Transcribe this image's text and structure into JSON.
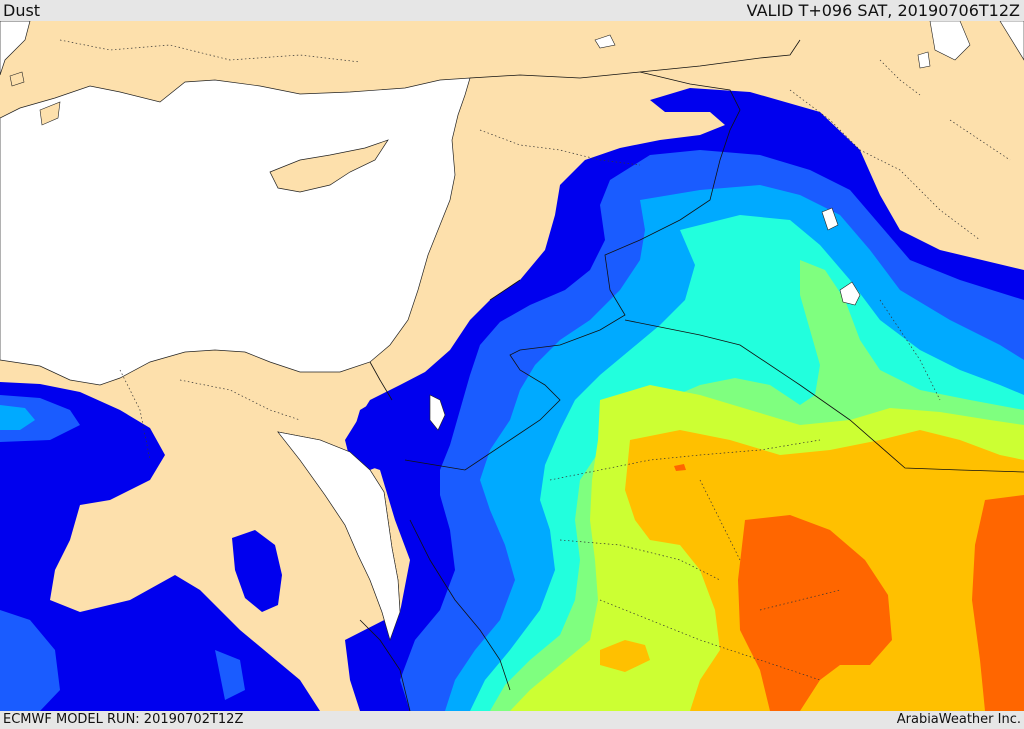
{
  "header": {
    "title": "Dust",
    "valid_time": "VALID T+096 SAT, 20190706T12Z"
  },
  "footer": {
    "model_run": "ECMWF MODEL RUN: 20190702T12Z",
    "provider": "ArabiaWeather Inc."
  },
  "colors": {
    "land": "#fde0ac",
    "sea": "#ffffff",
    "dust_level_1": "#0000ee",
    "dust_level_2": "#1a5cff",
    "dust_level_3": "#00aaff",
    "dust_level_4": "#22ffdd",
    "dust_level_5": "#7fff7f",
    "dust_level_6": "#ccff33",
    "dust_level_7": "#ffc000",
    "dust_level_8": "#ff6600"
  }
}
